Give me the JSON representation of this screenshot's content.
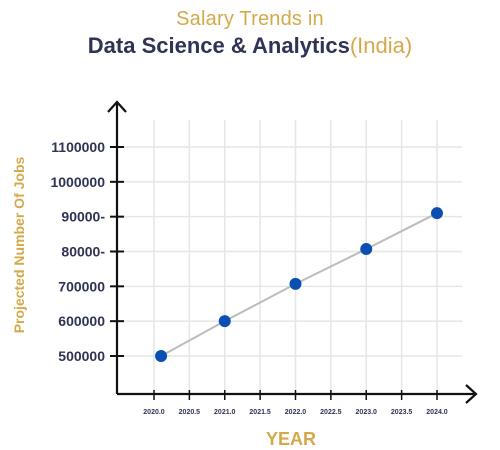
{
  "title": {
    "line1": "Salary Trends in",
    "line2_main": "Data Science & Analytics",
    "line2_sub": "(India)"
  },
  "chart_data": {
    "type": "line",
    "xlabel": "YEAR",
    "ylabel": "Projected Number Of Jobs",
    "xlim": [
      2019.95,
      2024.1
    ],
    "x_ticks": [
      {
        "value": 2020.0,
        "label": "2020.0"
      },
      {
        "value": 2020.5,
        "label": "2020.5"
      },
      {
        "value": 2021.0,
        "label": "2021.0"
      },
      {
        "value": 2021.5,
        "label": "2021.5"
      },
      {
        "value": 2022.0,
        "label": "2022.0"
      },
      {
        "value": 2022.5,
        "label": "2022.5"
      },
      {
        "value": 2023.0,
        "label": "2023.0"
      },
      {
        "value": 2023.5,
        "label": "2023.5"
      },
      {
        "value": 2024.0,
        "label": "2024.0"
      }
    ],
    "y_ticks": [
      {
        "value": 500000,
        "label": "500000"
      },
      {
        "value": 600000,
        "label": "600000"
      },
      {
        "value": 700000,
        "label": "700000"
      },
      {
        "value": 800000,
        "label": "80000-"
      },
      {
        "value": 900000,
        "label": "90000-"
      },
      {
        "value": 1000000,
        "label": "1000000"
      },
      {
        "value": 1100000,
        "label": "1100000"
      }
    ],
    "ylim": [
      435000,
      1160000
    ],
    "grid": true,
    "series": [
      {
        "x": [
          2020.1,
          2021.0,
          2022.0,
          2023.0,
          2024.0
        ],
        "y": [
          500000,
          600000,
          707000,
          807000,
          910000
        ]
      }
    ],
    "colors": {
      "line": "#bcbcbc",
      "marker": "#0b4fb3",
      "axis": "#111111",
      "grid": "#e6e6e6",
      "tick_text": "#2f3354",
      "axis_title": "#d4a94c"
    }
  }
}
